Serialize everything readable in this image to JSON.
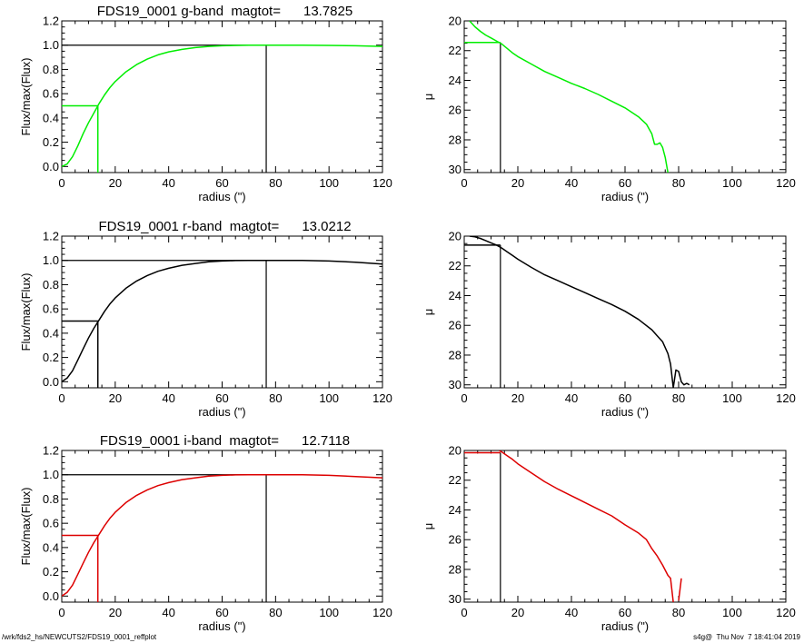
{
  "footer": {
    "left": "/wrk/fds2_hs/NEWCUTS2/FDS19_0001_reffplot",
    "right": "s4g@  Thu Nov  7 18:41:04 2019"
  },
  "chart_data": [
    {
      "type": "line",
      "panel": "g-band growth curve",
      "title": "FDS19_0001 g-band  magtot=      13.7825",
      "xlabel": "radius (\")",
      "ylabel": "Flux/max(Flux)",
      "xlim": [
        0,
        120
      ],
      "ylim": [
        -0.05,
        1.2
      ],
      "xticks": [
        "0",
        "20",
        "40",
        "60",
        "80",
        "100",
        "120"
      ],
      "yticks": [
        "0.0",
        "0.2",
        "0.4",
        "0.6",
        "0.8",
        "1.0",
        "1.2"
      ],
      "color": "#00ee00",
      "series": [
        {
          "x": [
            0,
            2,
            4,
            6,
            8,
            10,
            12,
            14,
            16,
            18,
            20,
            24,
            28,
            32,
            36,
            40,
            45,
            50,
            55,
            60,
            65,
            70,
            76,
            80,
            90,
            100,
            110,
            120
          ],
          "y": [
            0.0,
            0.02,
            0.08,
            0.17,
            0.27,
            0.36,
            0.44,
            0.52,
            0.59,
            0.65,
            0.7,
            0.78,
            0.84,
            0.885,
            0.92,
            0.945,
            0.965,
            0.98,
            0.99,
            0.995,
            0.998,
            1.0,
            1.0,
            1.0,
            1.0,
            0.998,
            0.995,
            0.99
          ]
        }
      ],
      "annotations": {
        "r_eff": 13.5,
        "half_flux": 0.5,
        "r_tot": 76.5,
        "full_flux": 1.0
      }
    },
    {
      "type": "line",
      "panel": "g-band surface brightness profile",
      "xlabel": "radius (\")",
      "ylabel": "μ",
      "xlim": [
        0,
        120
      ],
      "ylim": [
        30.2,
        20
      ],
      "xticks": [
        "0",
        "20",
        "40",
        "60",
        "80",
        "100",
        "120"
      ],
      "yticks": [
        "20",
        "22",
        "24",
        "26",
        "28",
        "30"
      ],
      "color": "#00ee00",
      "series": [
        {
          "x": [
            2,
            4,
            6,
            8,
            10,
            12,
            14,
            16,
            18,
            20,
            25,
            30,
            35,
            40,
            45,
            50,
            55,
            60,
            65,
            68,
            70,
            71,
            72,
            73,
            74,
            75,
            76
          ],
          "y": [
            20.0,
            20.4,
            20.7,
            20.95,
            21.15,
            21.35,
            21.55,
            21.85,
            22.15,
            22.4,
            22.9,
            23.4,
            23.8,
            24.2,
            24.55,
            24.95,
            25.4,
            25.85,
            26.45,
            26.95,
            27.6,
            28.3,
            28.3,
            28.2,
            28.5,
            29.2,
            30.2
          ]
        }
      ],
      "annotations": {
        "r_eff": 13.5,
        "mu_eff": 21.45
      }
    },
    {
      "type": "line",
      "panel": "r-band growth curve",
      "title": "FDS19_0001 r-band  magtot=      13.0212",
      "xlabel": "radius (\")",
      "ylabel": "Flux/max(Flux)",
      "xlim": [
        0,
        120
      ],
      "ylim": [
        -0.05,
        1.2
      ],
      "xticks": [
        "0",
        "20",
        "40",
        "60",
        "80",
        "100",
        "120"
      ],
      "yticks": [
        "0.0",
        "0.2",
        "0.4",
        "0.6",
        "0.8",
        "1.0",
        "1.2"
      ],
      "color": "#000000",
      "series": [
        {
          "x": [
            0,
            2,
            4,
            6,
            8,
            10,
            12,
            14,
            16,
            18,
            20,
            24,
            28,
            32,
            36,
            40,
            45,
            50,
            55,
            60,
            65,
            70,
            76,
            80,
            90,
            100,
            110,
            120
          ],
          "y": [
            0.0,
            0.03,
            0.09,
            0.18,
            0.27,
            0.36,
            0.44,
            0.51,
            0.58,
            0.64,
            0.69,
            0.77,
            0.83,
            0.875,
            0.91,
            0.935,
            0.96,
            0.975,
            0.988,
            0.995,
            0.999,
            1.0,
            1.0,
            1.0,
            1.0,
            0.995,
            0.985,
            0.97
          ]
        }
      ],
      "annotations": {
        "r_eff": 13.5,
        "half_flux": 0.5,
        "r_tot": 76.5,
        "full_flux": 1.0
      }
    },
    {
      "type": "line",
      "panel": "r-band surface brightness profile",
      "xlabel": "radius (\")",
      "ylabel": "μ",
      "xlim": [
        0,
        120
      ],
      "ylim": [
        30.2,
        20
      ],
      "xticks": [
        "0",
        "20",
        "40",
        "60",
        "80",
        "100",
        "120"
      ],
      "yticks": [
        "20",
        "22",
        "24",
        "26",
        "28",
        "30"
      ],
      "color": "#000000",
      "series": [
        {
          "x": [
            2,
            4,
            6,
            8,
            10,
            12,
            14,
            16,
            18,
            20,
            25,
            30,
            35,
            40,
            45,
            50,
            55,
            60,
            65,
            70,
            72,
            74,
            76,
            77,
            78,
            79,
            80,
            81,
            82,
            83,
            84
          ],
          "y": [
            20.0,
            20.05,
            20.15,
            20.3,
            20.45,
            20.6,
            20.8,
            21.05,
            21.3,
            21.55,
            22.1,
            22.6,
            23.0,
            23.4,
            23.8,
            24.2,
            24.6,
            25.05,
            25.6,
            26.3,
            26.7,
            27.1,
            27.9,
            28.6,
            30.2,
            29.0,
            29.1,
            29.8,
            30.0,
            29.9,
            30.0
          ]
        }
      ],
      "annotations": {
        "r_eff": 13.5,
        "mu_eff": 20.6
      }
    },
    {
      "type": "line",
      "panel": "i-band growth curve",
      "title": "FDS19_0001 i-band  magtot=      12.7118",
      "xlabel": "radius (\")",
      "ylabel": "Flux/max(Flux)",
      "xlim": [
        0,
        120
      ],
      "ylim": [
        -0.05,
        1.2
      ],
      "xticks": [
        "0",
        "20",
        "40",
        "60",
        "80",
        "100",
        "120"
      ],
      "yticks": [
        "0.0",
        "0.2",
        "0.4",
        "0.6",
        "0.8",
        "1.0",
        "1.2"
      ],
      "color": "#dd0000",
      "series": [
        {
          "x": [
            0,
            2,
            4,
            6,
            8,
            10,
            12,
            14,
            16,
            18,
            20,
            24,
            28,
            32,
            36,
            40,
            45,
            50,
            55,
            60,
            65,
            70,
            76,
            80,
            90,
            100,
            110,
            120
          ],
          "y": [
            0.0,
            0.03,
            0.09,
            0.18,
            0.27,
            0.36,
            0.44,
            0.51,
            0.58,
            0.64,
            0.69,
            0.77,
            0.83,
            0.875,
            0.91,
            0.935,
            0.96,
            0.975,
            0.988,
            0.995,
            0.999,
            1.0,
            1.0,
            1.0,
            1.0,
            0.995,
            0.985,
            0.975
          ]
        }
      ],
      "annotations": {
        "r_eff": 13.5,
        "half_flux": 0.5,
        "r_tot": 76.5,
        "full_flux": 1.0
      }
    },
    {
      "type": "line",
      "panel": "i-band surface brightness profile",
      "xlabel": "radius (\")",
      "ylabel": "μ",
      "xlim": [
        0,
        120
      ],
      "ylim": [
        30.2,
        20
      ],
      "xticks": [
        "0",
        "20",
        "40",
        "60",
        "80",
        "100",
        "120"
      ],
      "yticks": [
        "20",
        "22",
        "24",
        "26",
        "28",
        "30"
      ],
      "color": "#dd0000",
      "series": [
        {
          "x": [
            13,
            14,
            16,
            18,
            20,
            25,
            30,
            35,
            40,
            45,
            50,
            55,
            60,
            65,
            68,
            70,
            72,
            74,
            76,
            77,
            78,
            null,
            80,
            81
          ],
          "y": [
            20.0,
            20.1,
            20.35,
            20.6,
            20.9,
            21.5,
            22.1,
            22.6,
            23.05,
            23.5,
            23.95,
            24.4,
            25.0,
            25.55,
            26.0,
            26.6,
            27.1,
            27.7,
            28.4,
            28.6,
            30.2,
            null,
            30.1,
            28.6
          ]
        }
      ],
      "annotations": {
        "r_eff": 13.5,
        "mu_eff": 20.15,
        "mu_eff_start": 0
      }
    }
  ]
}
